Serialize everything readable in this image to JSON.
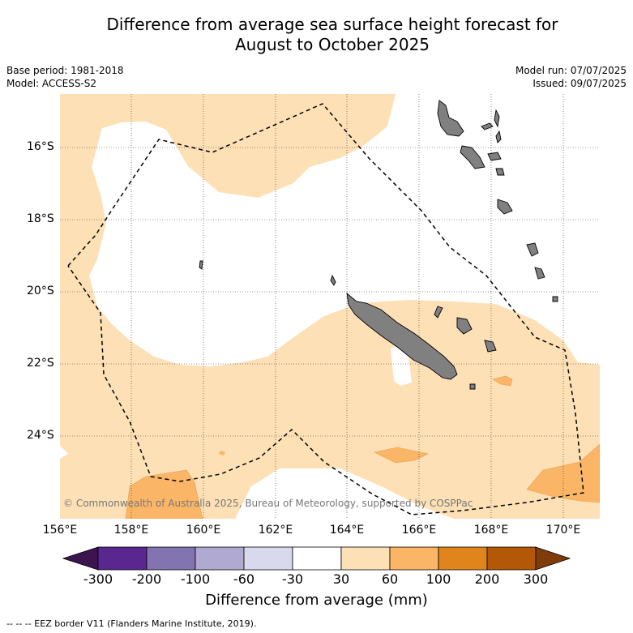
{
  "title_line1": "Difference from average sea surface height forecast for",
  "title_line2": "August to October 2025",
  "base_period": "Base period: 1981-2018",
  "model": "Model: ACCESS-S2",
  "model_run": "Model run: 07/07/2025",
  "issued": "Issued: 09/07/2025",
  "copyright": "© Commonwealth of Australia 2025, Bureau of Meteorology, supported by COSPPac",
  "lat_labels": [
    "16°S",
    "18°S",
    "20°S",
    "22°S",
    "24°S"
  ],
  "lon_labels": [
    "156°E",
    "158°E",
    "160°E",
    "162°E",
    "164°E",
    "166°E",
    "168°E",
    "170°E"
  ],
  "colorbar": {
    "title": "Difference from average (mm)",
    "labels": [
      "-300",
      "-200",
      "-100",
      "-60",
      "-30",
      "30",
      "60",
      "100",
      "200",
      "300"
    ],
    "colors": [
      "#3b1450",
      "#5a2790",
      "#8274b0",
      "#b0a9d2",
      "#d9d9ed",
      "#ffffff",
      "#fde0b5",
      "#fbb567",
      "#e0851b",
      "#b35807",
      "#7f3b08"
    ]
  },
  "footnote": "-- -- -- EEZ border V11 (Flanders Marine Institute, 2019).",
  "colors": {
    "land": "#808080",
    "band_30_60": "#fde0b5",
    "band_60_100": "#fbb567"
  }
}
